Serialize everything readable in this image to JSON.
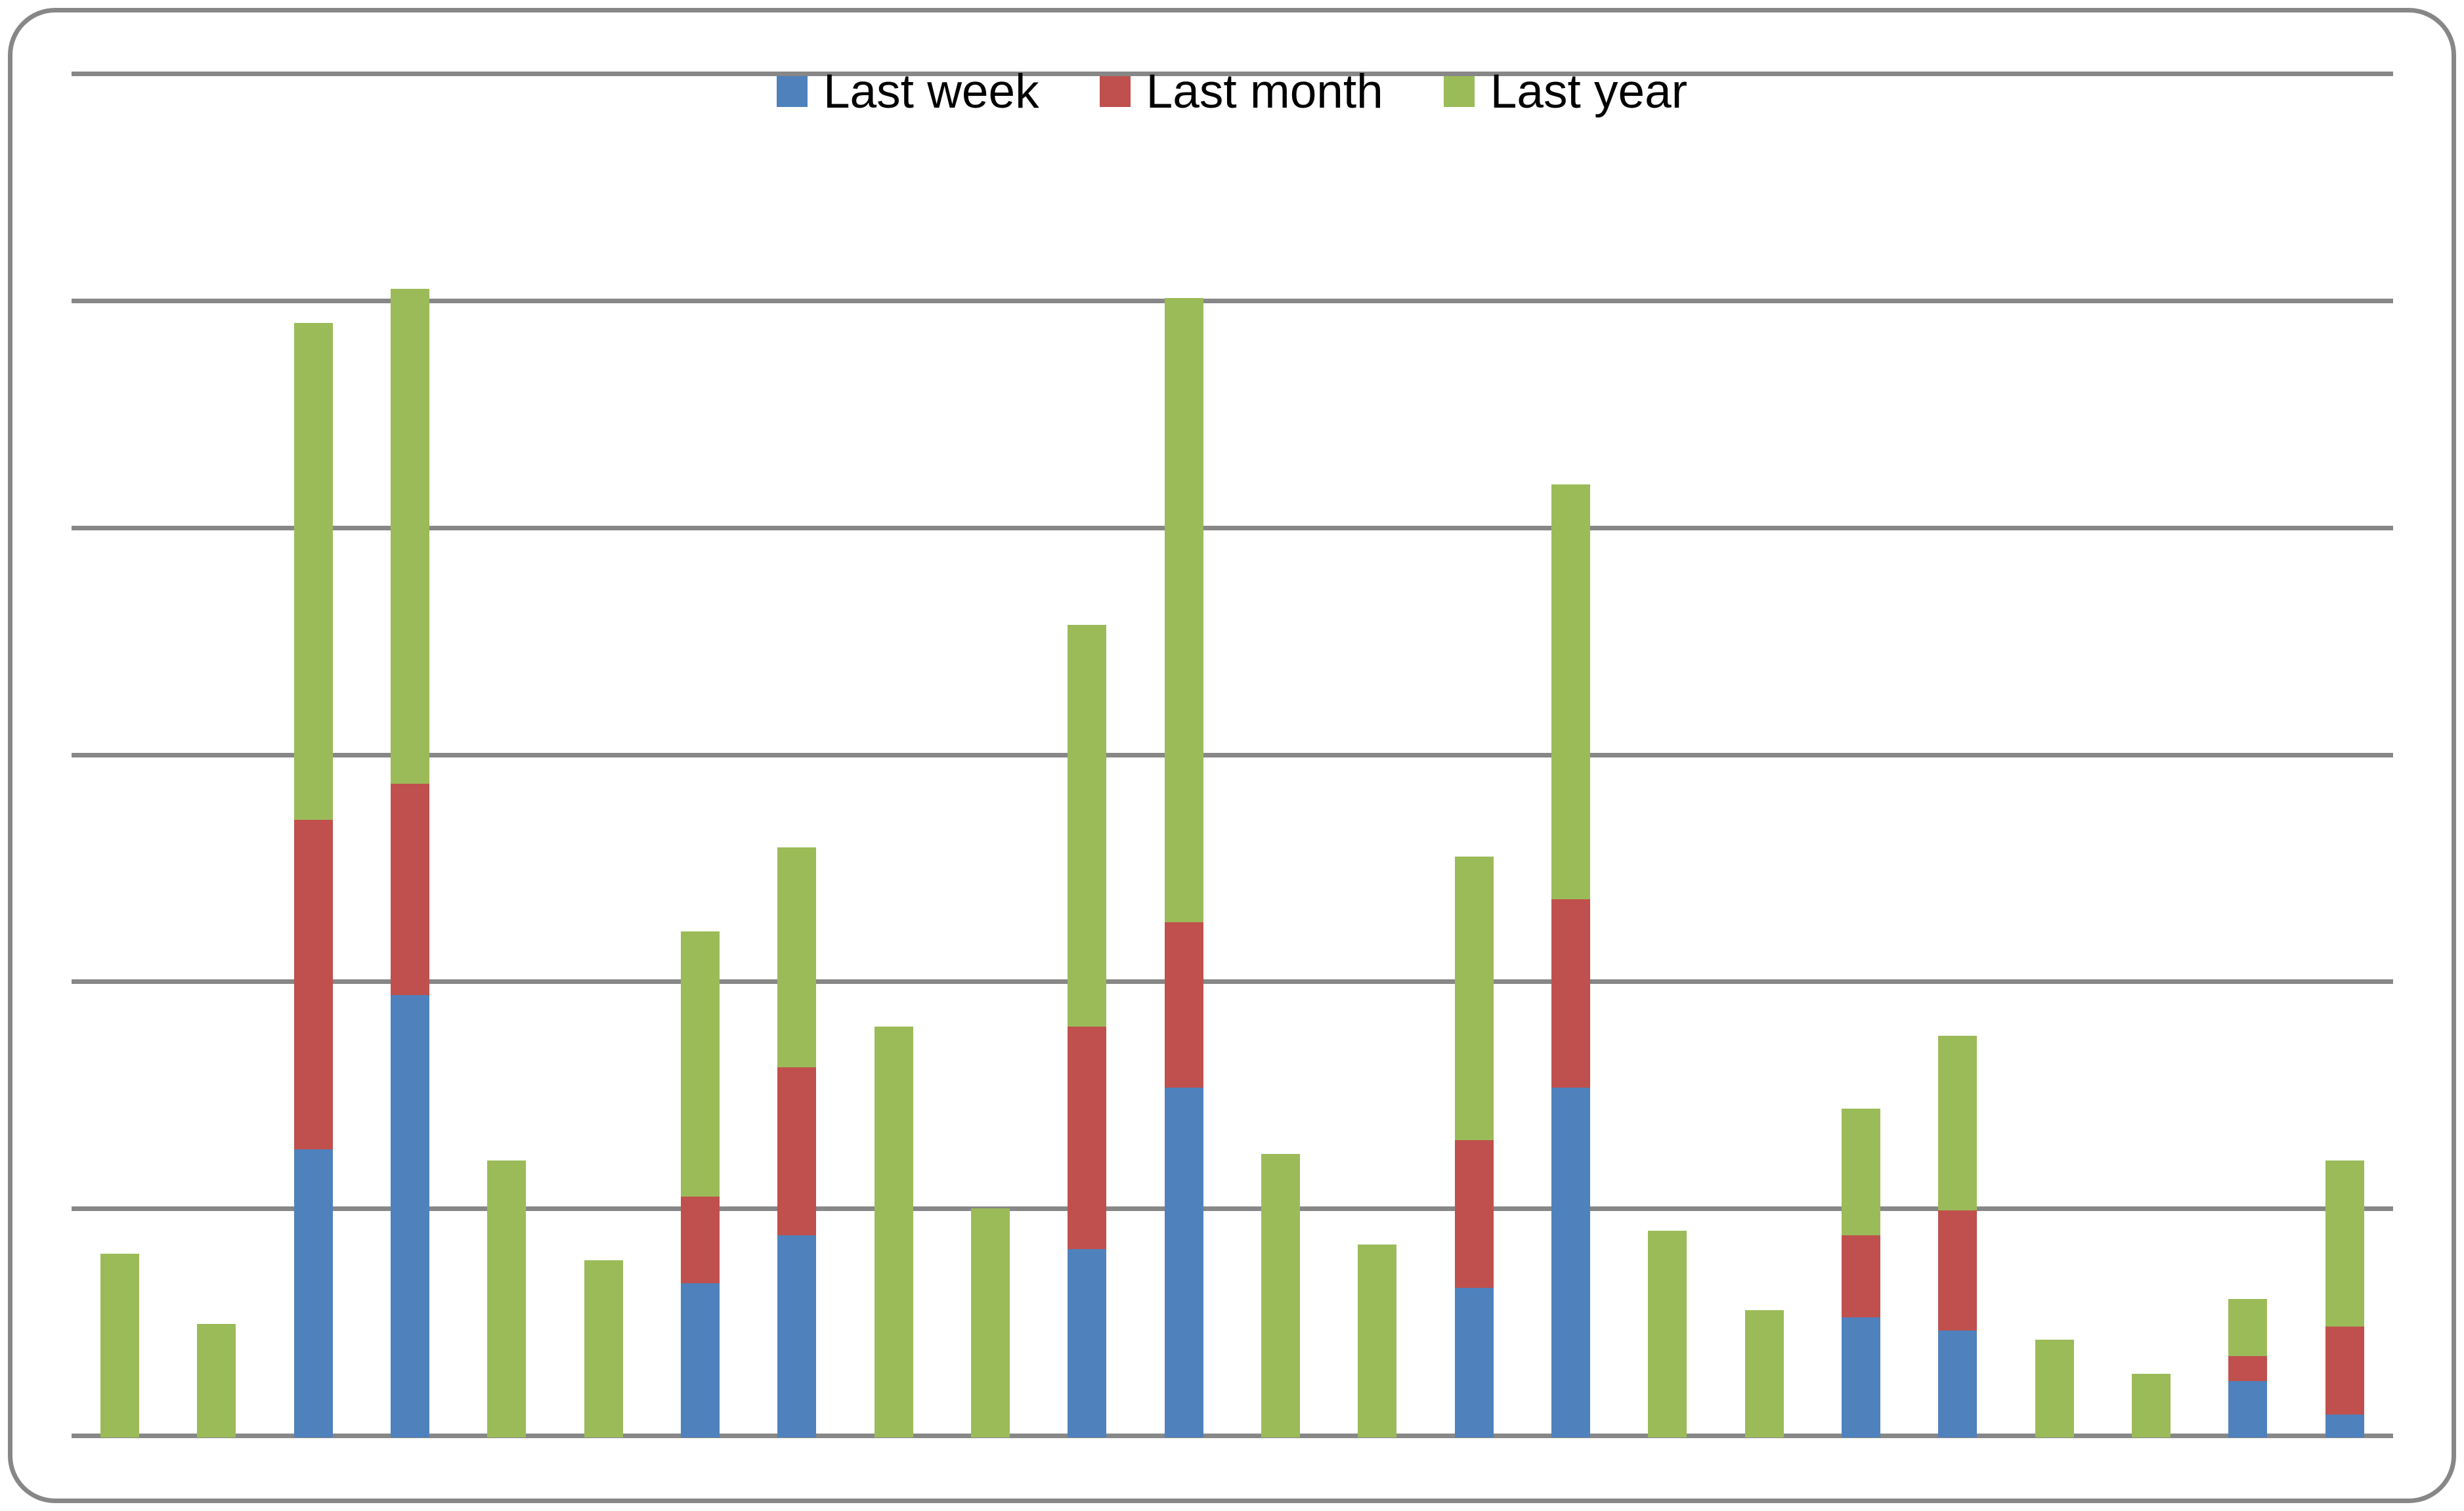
{
  "legend": {
    "items": [
      {
        "label": "Last week",
        "color": "#4F81BD"
      },
      {
        "label": "Last month",
        "color": "#C0504D"
      },
      {
        "label": "Last year",
        "color": "#9BBB59"
      }
    ]
  },
  "styles": {
    "background": "#FFFFFF",
    "grid_color": "#878787",
    "border_color": "#878787",
    "text_color": "#000000",
    "blue": "#4F81BD",
    "red": "#C0504D",
    "green": "#9BBB59"
  },
  "chart_data": {
    "type": "bar",
    "stacked": true,
    "title": "",
    "xlabel": "",
    "ylabel": "",
    "n_categories": 24,
    "x_tick_labels_visible": false,
    "y_tick_labels_visible": false,
    "ylim": [
      0,
      6
    ],
    "gridlines": "horizontal",
    "gridline_interval": 1,
    "legend_position": "top-center",
    "units_note": "y-axis is unlabeled; values are measured in gridline units (1 unit = one gridline interval)",
    "series": [
      {
        "name": "Last week",
        "color": "#4F81BD",
        "values": [
          0,
          0,
          1.27,
          1.95,
          0,
          0,
          0.68,
          0.89,
          0,
          0,
          0.83,
          1.54,
          0,
          0,
          0.66,
          1.54,
          0,
          0,
          0.53,
          0.47,
          0,
          0,
          0.25,
          0.1
        ]
      },
      {
        "name": "Last month",
        "color": "#C0504D",
        "values": [
          0,
          0,
          1.45,
          0.93,
          0,
          0,
          0.38,
          0.74,
          0,
          0,
          0.98,
          0.73,
          0,
          0,
          0.65,
          0.83,
          0,
          0,
          0.36,
          0.53,
          0,
          0,
          0.11,
          0.39
        ]
      },
      {
        "name": "Last year",
        "color": "#9BBB59",
        "values": [
          0.81,
          0.5,
          2.19,
          2.18,
          1.22,
          0.78,
          1.17,
          0.97,
          1.81,
          1.01,
          1.77,
          2.75,
          1.25,
          0.85,
          1.25,
          1.83,
          0.91,
          0.56,
          0.56,
          0.77,
          0.43,
          0.28,
          0.25,
          0.73
        ]
      }
    ]
  }
}
